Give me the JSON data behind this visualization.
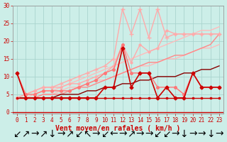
{
  "xlabel": "Vent moyen/en rafales ( km/h )",
  "xlim": [
    -0.5,
    23.5
  ],
  "ylim": [
    0,
    30
  ],
  "xticks": [
    0,
    1,
    2,
    3,
    4,
    5,
    6,
    7,
    8,
    9,
    10,
    11,
    12,
    13,
    14,
    15,
    16,
    17,
    18,
    19,
    20,
    21,
    22,
    23
  ],
  "yticks": [
    0,
    5,
    10,
    15,
    20,
    25,
    30
  ],
  "background_color": "#cceee8",
  "grid_color": "#aad4ce",
  "series": [
    {
      "x": [
        0,
        1,
        2,
        3,
        4,
        5,
        6,
        7,
        8,
        9,
        10,
        11,
        12,
        13,
        14,
        15,
        16,
        17,
        18,
        19,
        20,
        21,
        22,
        23
      ],
      "y": [
        4,
        4,
        5,
        6,
        6,
        7,
        8,
        9,
        10,
        11,
        12,
        13,
        14,
        15,
        16,
        17,
        18,
        19,
        20,
        21,
        22,
        23,
        23,
        24
      ],
      "color": "#ffbbbb",
      "lw": 1.0,
      "marker": null,
      "ms": 0
    },
    {
      "x": [
        0,
        1,
        2,
        3,
        4,
        5,
        6,
        7,
        8,
        9,
        10,
        11,
        12,
        13,
        14,
        15,
        16,
        17,
        18,
        19,
        20,
        21,
        22,
        23
      ],
      "y": [
        4,
        4,
        4,
        5,
        5,
        6,
        7,
        7,
        8,
        9,
        9,
        10,
        11,
        12,
        13,
        13,
        14,
        15,
        15,
        16,
        17,
        18,
        18,
        19
      ],
      "color": "#ffbbbb",
      "lw": 1.0,
      "marker": null,
      "ms": 0
    },
    {
      "x": [
        0,
        1,
        2,
        3,
        4,
        5,
        6,
        7,
        8,
        9,
        10,
        11,
        12,
        13,
        14,
        15,
        16,
        17,
        18,
        19,
        20,
        21,
        22,
        23
      ],
      "y": [
        4,
        5,
        6,
        7,
        7,
        8,
        9,
        10,
        11,
        12,
        13,
        15,
        29,
        22,
        29,
        21,
        29,
        21,
        22,
        22,
        22,
        22,
        22,
        22
      ],
      "color": "#ffaaaa",
      "lw": 1.0,
      "marker": "+",
      "ms": 4
    },
    {
      "x": [
        0,
        1,
        2,
        3,
        4,
        5,
        6,
        7,
        8,
        9,
        10,
        11,
        12,
        13,
        14,
        15,
        16,
        17,
        18,
        19,
        20,
        21,
        22,
        23
      ],
      "y": [
        4,
        5,
        6,
        7,
        7,
        7,
        8,
        8,
        9,
        10,
        11,
        13,
        19,
        14,
        19,
        17,
        18,
        23,
        22,
        22,
        22,
        22,
        22,
        22
      ],
      "color": "#ffaaaa",
      "lw": 1.0,
      "marker": "o",
      "ms": 2.0
    },
    {
      "x": [
        0,
        1,
        2,
        3,
        4,
        5,
        6,
        7,
        8,
        9,
        10,
        11,
        12,
        13,
        14,
        15,
        16,
        17,
        18,
        19,
        20,
        21,
        22,
        23
      ],
      "y": [
        4,
        4,
        4,
        5,
        5,
        5,
        6,
        7,
        7,
        8,
        9,
        10,
        11,
        12,
        13,
        14,
        14,
        15,
        16,
        16,
        17,
        18,
        19,
        22
      ],
      "color": "#ff8888",
      "lw": 1.0,
      "marker": null,
      "ms": 0
    },
    {
      "x": [
        0,
        1,
        2,
        3,
        4,
        5,
        6,
        7,
        8,
        9,
        10,
        11,
        12,
        13,
        14,
        15,
        16,
        17,
        18,
        19,
        20,
        21,
        22,
        23
      ],
      "y": [
        11,
        5,
        5,
        6,
        6,
        6,
        6,
        7,
        8,
        9,
        11,
        12,
        19,
        11,
        11,
        11,
        7,
        7,
        7,
        5,
        11,
        7,
        7,
        7
      ],
      "color": "#ff7777",
      "lw": 1.0,
      "marker": "o",
      "ms": 2.5
    },
    {
      "x": [
        0,
        1,
        2,
        3,
        4,
        5,
        6,
        7,
        8,
        9,
        10,
        11,
        12,
        13,
        14,
        15,
        16,
        17,
        18,
        19,
        20,
        21,
        22,
        23
      ],
      "y": [
        4,
        4,
        4,
        4,
        4,
        4,
        4,
        4,
        4,
        4,
        4,
        4,
        4,
        4,
        4,
        4,
        4,
        4,
        4,
        4,
        4,
        4,
        4,
        4
      ],
      "color": "#cc0000",
      "lw": 1.0,
      "marker": "s",
      "ms": 2.0
    },
    {
      "x": [
        0,
        1,
        2,
        3,
        4,
        5,
        6,
        7,
        8,
        9,
        10,
        11,
        12,
        13,
        14,
        15,
        16,
        17,
        18,
        19,
        20,
        21,
        22,
        23
      ],
      "y": [
        11,
        4,
        4,
        4,
        4,
        4,
        4,
        4,
        4,
        4,
        7,
        7,
        18,
        7,
        11,
        11,
        4,
        7,
        4,
        4,
        11,
        7,
        7,
        7
      ],
      "color": "#cc0000",
      "lw": 1.2,
      "marker": "D",
      "ms": 2.5
    },
    {
      "x": [
        0,
        1,
        2,
        3,
        4,
        5,
        6,
        7,
        8,
        9,
        10,
        11,
        12,
        13,
        14,
        15,
        16,
        17,
        18,
        19,
        20,
        21,
        22,
        23
      ],
      "y": [
        4,
        4,
        4,
        4,
        4,
        5,
        5,
        5,
        6,
        6,
        7,
        7,
        8,
        8,
        9,
        9,
        10,
        10,
        10,
        11,
        11,
        12,
        12,
        13
      ],
      "color": "#880000",
      "lw": 1.0,
      "marker": null,
      "ms": 0
    }
  ],
  "wind_arrows": [
    "↙",
    "↗",
    "→",
    "↗",
    "↓",
    "→",
    "↗",
    "↙",
    "↖",
    "→",
    "↙",
    "←",
    "→",
    "↗",
    "→",
    "→",
    "↙",
    "↙",
    "→",
    "↓",
    "→",
    "→",
    "↓",
    "→"
  ],
  "xlabel_fontsize": 7,
  "tick_fontsize": 5.5
}
